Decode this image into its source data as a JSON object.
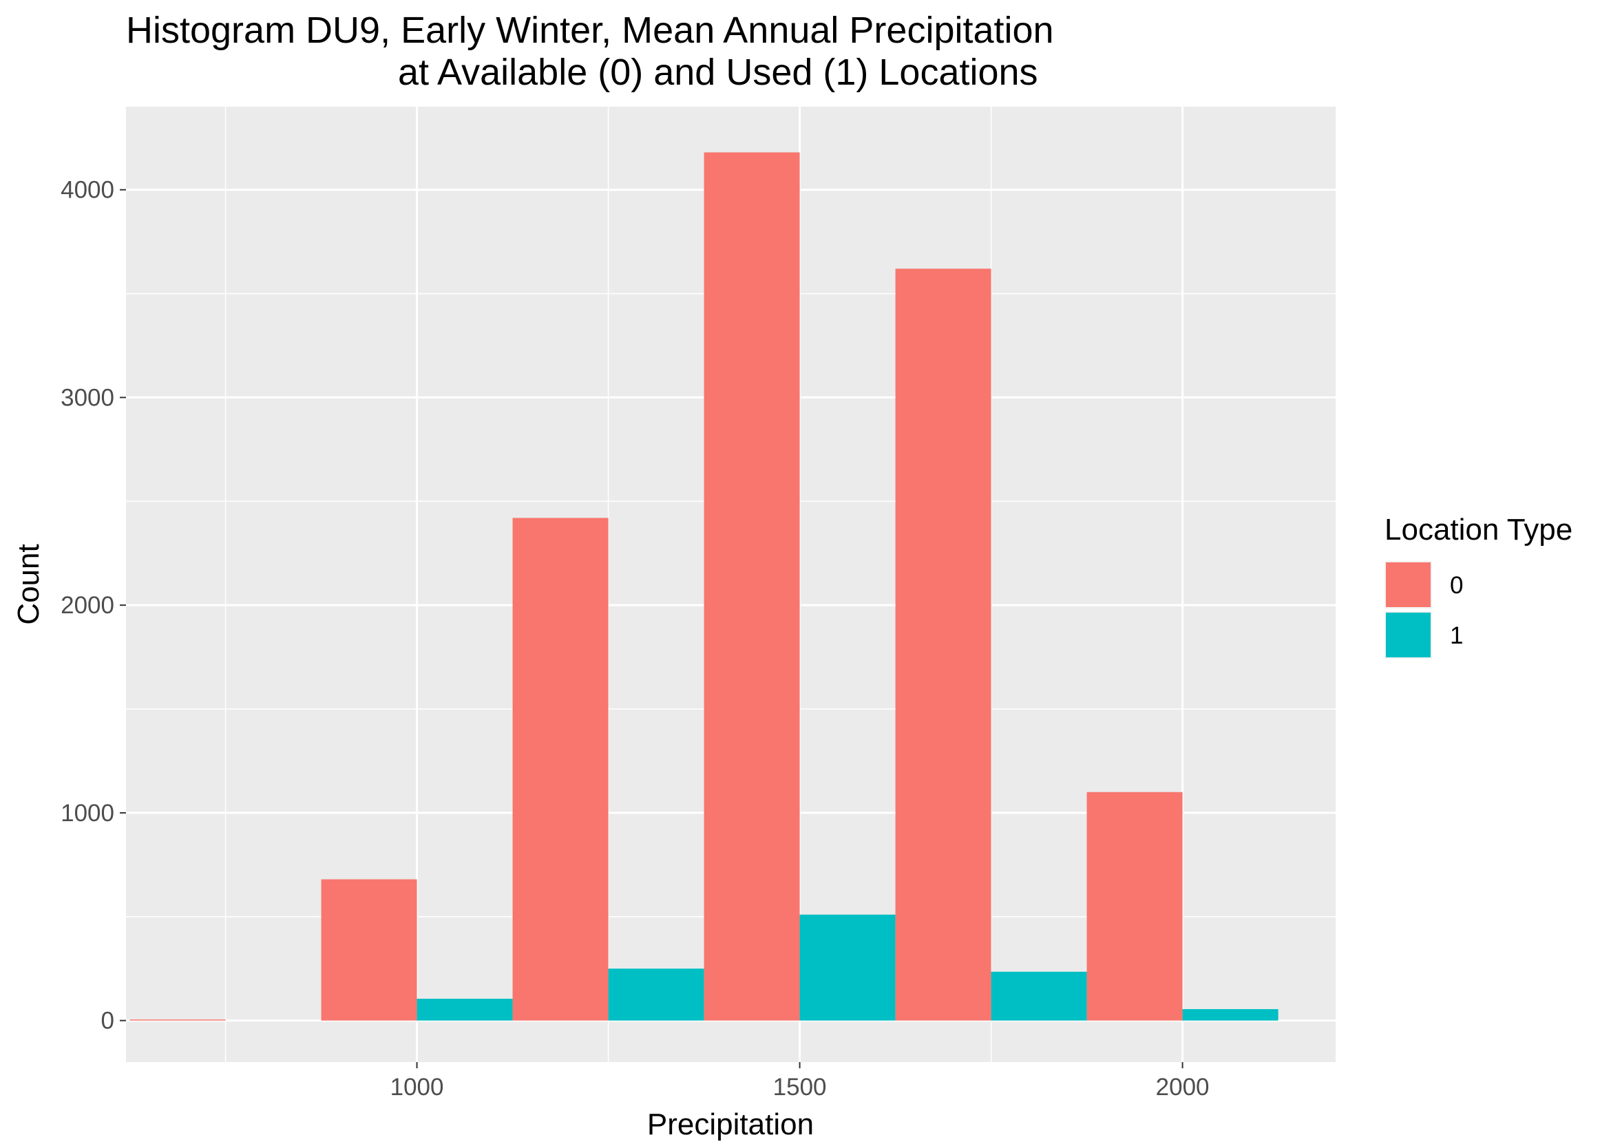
{
  "chart_data": {
    "type": "bar",
    "title_line1": "Histogram DU9, Early Winter, Mean Annual Precipitation",
    "title_line2": "at Available (0) and Used (1) Locations",
    "xlabel": "Precipitation",
    "ylabel": "Count",
    "xlim": [
      620,
      2200
    ],
    "ylim": [
      -200,
      4400
    ],
    "x_ticks": [
      1000,
      1500,
      2000
    ],
    "y_ticks": [
      0,
      1000,
      2000,
      3000,
      4000
    ],
    "grid": true,
    "bin_width": 250,
    "legend": {
      "title": "Location Type",
      "placement": "right",
      "entries": [
        {
          "label": "0",
          "color": "#F8766D"
        },
        {
          "label": "1",
          "color": "#00BFC4"
        }
      ]
    },
    "bin_centers": [
      750,
      1000,
      1250,
      1500,
      1750,
      2000
    ],
    "series": [
      {
        "name": "0",
        "color": "#F8766D",
        "values": [
          5,
          680,
          2420,
          4180,
          3620,
          1100
        ]
      },
      {
        "name": "1",
        "color": "#00BFC4",
        "values": [
          0,
          105,
          250,
          510,
          235,
          55
        ]
      }
    ]
  }
}
